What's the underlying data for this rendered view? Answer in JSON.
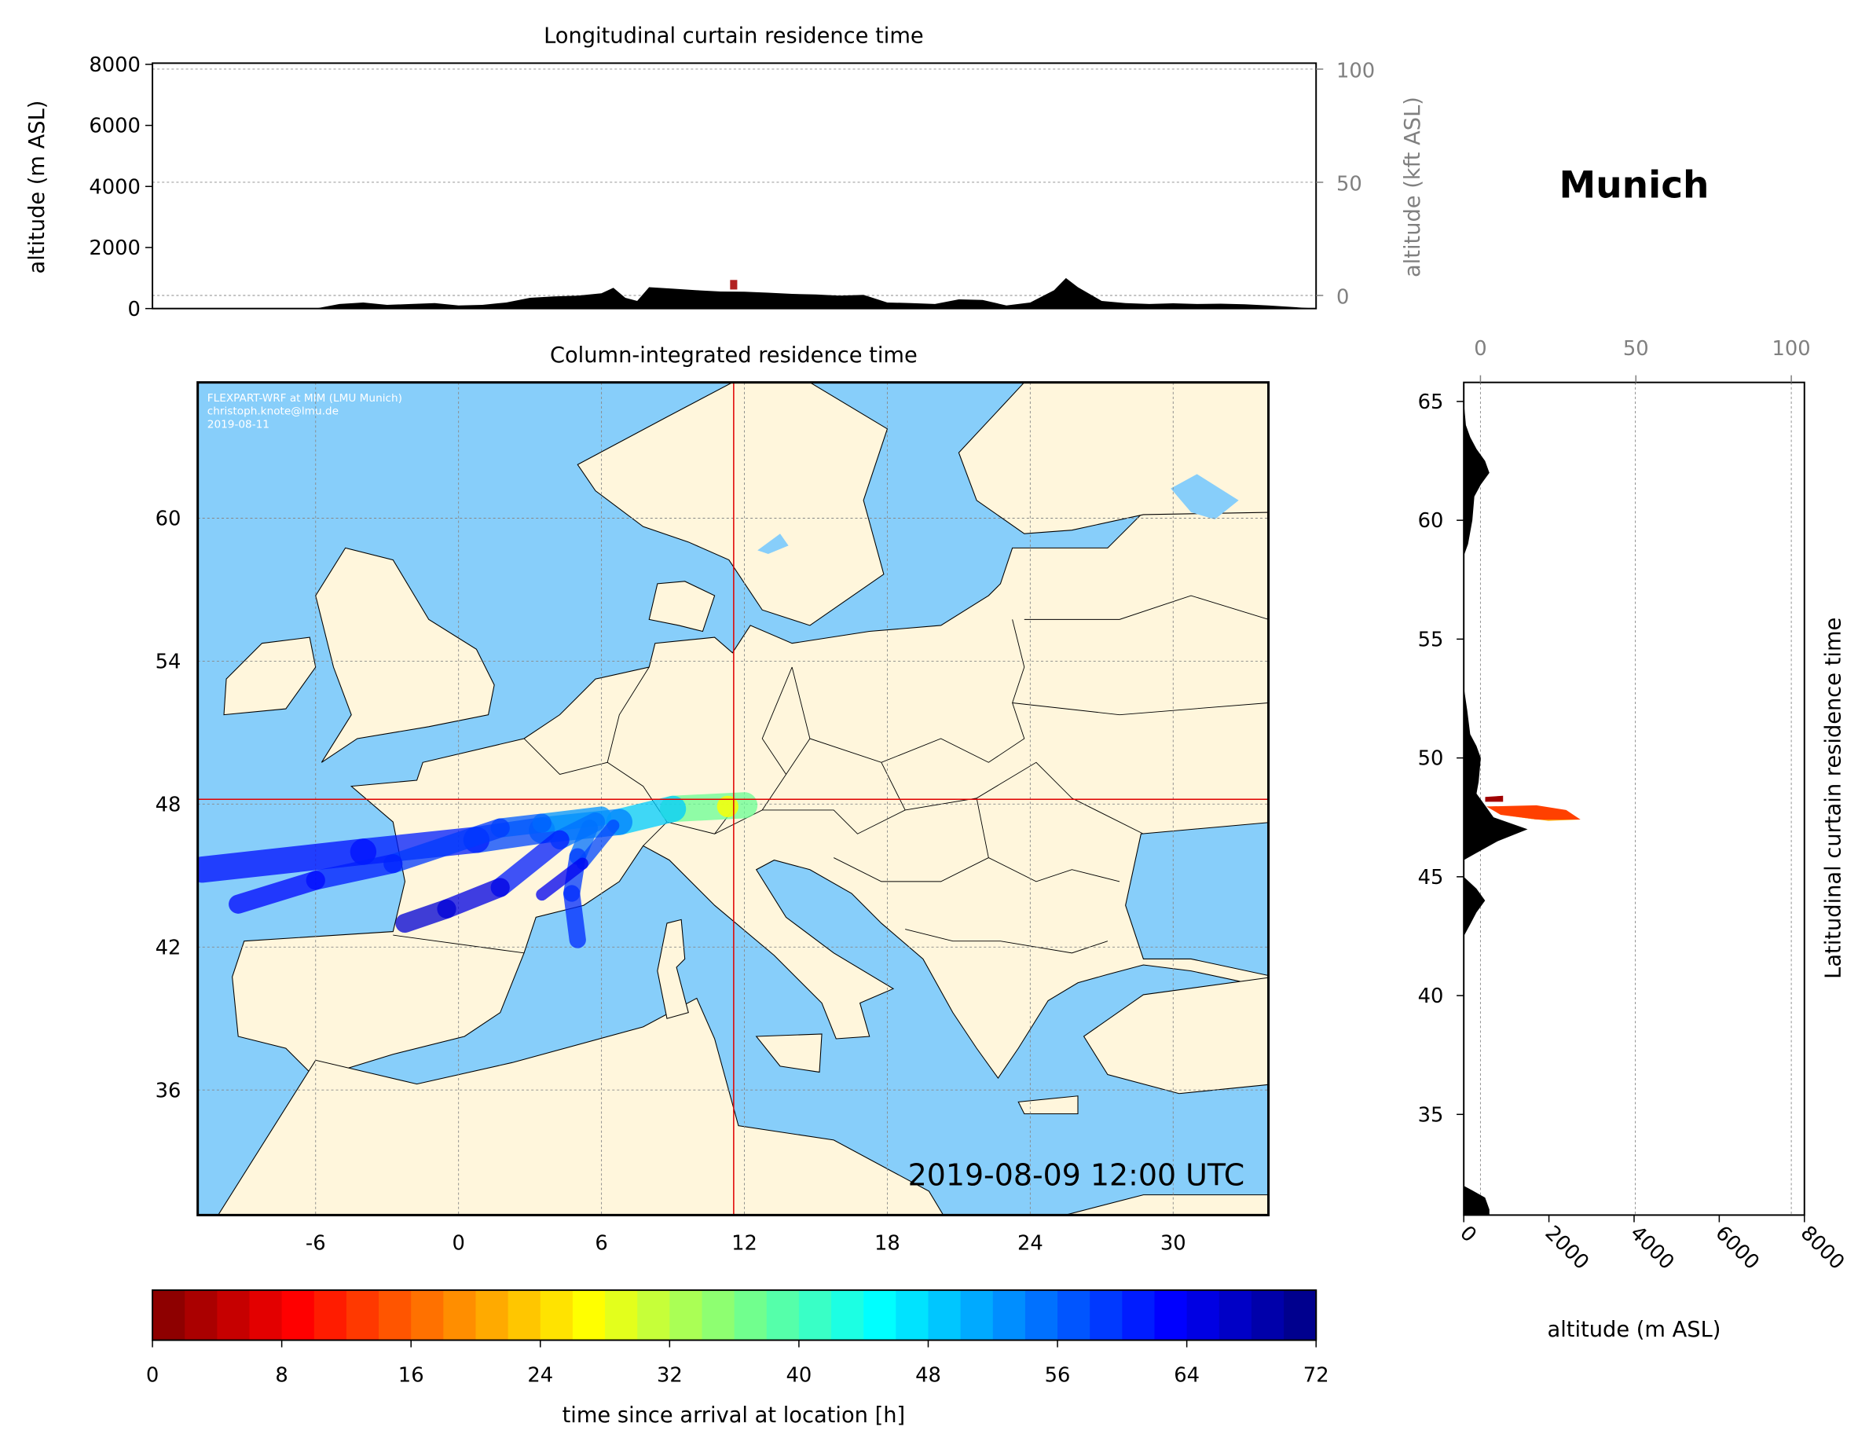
{
  "chart_data": [
    {
      "type": "area",
      "title": "Longitudinal curtain residence time",
      "ylabel": "altitude (m ASL)",
      "ylabel_right": "altitude (kft ASL)",
      "ylim": [
        0,
        8000
      ],
      "yticks": [
        "0",
        "2000",
        "4000",
        "6000",
        "8000"
      ],
      "yticks_right": [
        "0",
        "50",
        "100"
      ],
      "xlim": [
        -11,
        34
      ],
      "terrain_profile": {
        "lon": [
          -11,
          -6,
          -5,
          -4,
          -3,
          -2,
          -1,
          0,
          1,
          2,
          3,
          4,
          5,
          6,
          6.5,
          7,
          7.5,
          8,
          9,
          10,
          11,
          12,
          13,
          14,
          15,
          16,
          17,
          18,
          19,
          20,
          21,
          22,
          23,
          24,
          25,
          25.5,
          26,
          27,
          28,
          29,
          30,
          31,
          32,
          33,
          34
        ],
        "alt": [
          0,
          0,
          150,
          200,
          120,
          150,
          180,
          100,
          120,
          200,
          350,
          400,
          420,
          500,
          680,
          350,
          250,
          700,
          650,
          600,
          560,
          550,
          520,
          480,
          460,
          420,
          450,
          200,
          180,
          150,
          300,
          280,
          100,
          200,
          600,
          1000,
          700,
          250,
          180,
          150,
          170,
          150,
          160,
          140,
          100
        ]
      },
      "residence_marker": {
        "lon": 11.6,
        "alt_range": [
          700,
          950
        ],
        "time_h": 2
      }
    },
    {
      "type": "heatmap",
      "title": "Column-integrated residence time",
      "xticks": [
        "-6",
        "0",
        "6",
        "12",
        "18",
        "24",
        "30"
      ],
      "yticks": [
        "36",
        "42",
        "48",
        "54",
        "60"
      ],
      "xlim": [
        -10.95,
        34
      ],
      "ylim": [
        30.75,
        65.7
      ],
      "location": {
        "lon": 11.55,
        "lat": 48.2
      },
      "timestamp": "2019-08-09 12:00 UTC",
      "credit": [
        "FLEXPART-WRF at MIM (LMU Munich)",
        "christoph.knote@lmu.de",
        "2019-08-11"
      ],
      "plume_streaks": [
        {
          "lon": [
            12,
            9,
            6.75,
            3.5,
            0.75,
            -4,
            -10.75
          ],
          "lat": [
            47.95,
            47.8,
            47.25,
            46.9,
            46.5,
            46,
            45.25
          ],
          "time_h": [
            30,
            45,
            52,
            56,
            60,
            62,
            62
          ],
          "width_deg": 1.1
        },
        {
          "lon": [
            6,
            3.5,
            1.75,
            -2.75,
            -6,
            -9.25
          ],
          "lat": [
            47.5,
            47.2,
            47,
            45.5,
            44.8,
            43.8
          ],
          "time_h": [
            50,
            55,
            58,
            60,
            62,
            63
          ],
          "width_deg": 0.8
        },
        {
          "lon": [
            5.75,
            4.25,
            1.75,
            -0.5,
            -2.25
          ],
          "lat": [
            47.25,
            46.5,
            44.5,
            43.6,
            43
          ],
          "time_h": [
            52,
            58,
            64,
            66,
            66
          ],
          "width_deg": 0.8
        },
        {
          "lon": [
            5.5,
            5,
            4.75,
            5
          ],
          "lat": [
            47,
            45.8,
            44.25,
            42.3
          ],
          "time_h": [
            52,
            58,
            60,
            60
          ],
          "width_deg": 0.7
        },
        {
          "lon": [
            6.5,
            5.2,
            3.5
          ],
          "lat": [
            47.1,
            45.5,
            44.2
          ],
          "time_h": [
            54,
            62,
            66
          ],
          "width_deg": 0.5
        }
      ]
    },
    {
      "type": "area",
      "title": "Munich",
      "ylabel": "Latitudinal curtain residence time",
      "xlabel": "altitude (m ASL)",
      "xlim": [
        0,
        8000
      ],
      "xticks": [
        "0",
        "2000",
        "4000",
        "6000",
        "8000"
      ],
      "xticks_top": [
        "0",
        "50",
        "100"
      ],
      "yticks": [
        "35",
        "40",
        "45",
        "50",
        "55",
        "60",
        "65"
      ],
      "ylim": [
        30.75,
        65.7
      ],
      "terrain_profile": {
        "lat": [
          65,
          64,
          63.5,
          63,
          62.5,
          62,
          61.5,
          61,
          60,
          59,
          58.5,
          53,
          52,
          51,
          50.5,
          50,
          49,
          48.5,
          48,
          47.5,
          47,
          46.5,
          46,
          45.7,
          45.5,
          45,
          44.5,
          44,
          43.5,
          43,
          42.5,
          42,
          41,
          35,
          32,
          31.8,
          31.5,
          31,
          30.75
        ],
        "alt": [
          0,
          50,
          150,
          300,
          500,
          600,
          400,
          250,
          200,
          100,
          0,
          0,
          80,
          150,
          300,
          400,
          350,
          300,
          500,
          700,
          1500,
          800,
          300,
          0,
          0,
          0,
          300,
          500,
          300,
          150,
          0,
          0,
          0,
          0,
          0,
          200,
          500,
          600,
          600
        ]
      },
      "residence_band": {
        "lat_range": [
          47.3,
          48.3
        ],
        "alt_range": [
          500,
          2700
        ],
        "time_h": [
          0,
          16
        ]
      }
    },
    {
      "type": "colorbar",
      "label": "time since arrival at location [h]",
      "ticks": [
        "0",
        "8",
        "16",
        "24",
        "32",
        "40",
        "48",
        "56",
        "64",
        "72"
      ],
      "range": [
        0,
        72
      ],
      "colormap": "jet_r",
      "levels": 36
    }
  ]
}
